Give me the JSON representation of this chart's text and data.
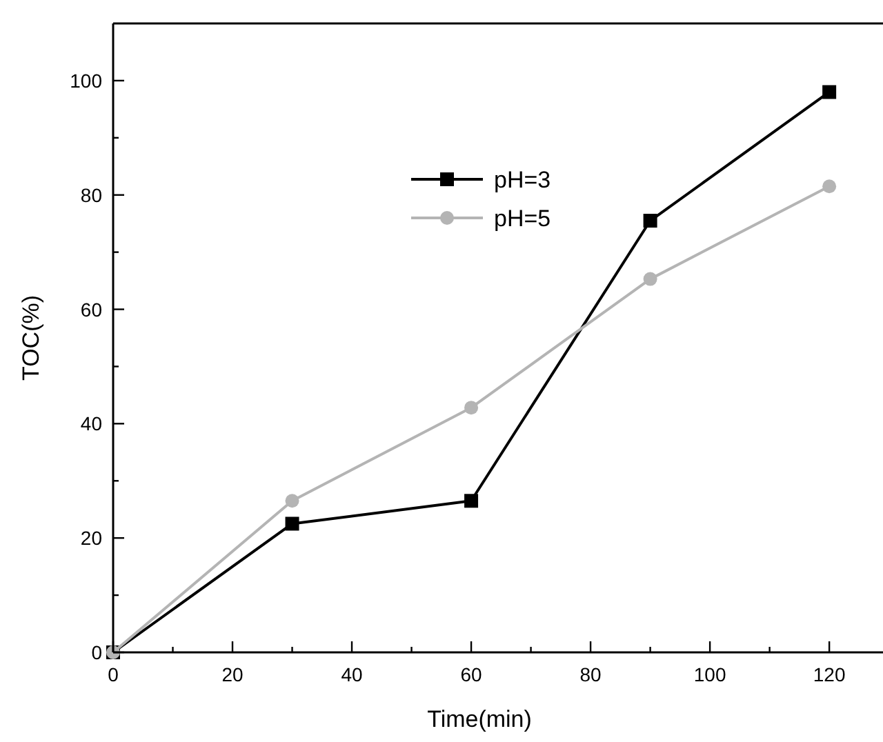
{
  "chart_data": {
    "type": "line",
    "xlabel": "Time(min)",
    "ylabel": "TOC(%)",
    "x": [
      0,
      30,
      60,
      90,
      120
    ],
    "series": [
      {
        "name": "pH=3",
        "color": "#000000",
        "marker": "square",
        "values": [
          0,
          22.5,
          26.5,
          75.5,
          98
        ]
      },
      {
        "name": "pH=5",
        "color": "#b4b4b4",
        "marker": "circle",
        "values": [
          0,
          26.5,
          42.8,
          65.3,
          81.5
        ]
      }
    ],
    "xlim": [
      0,
      129
    ],
    "ylim": [
      0,
      110
    ],
    "xticks": [
      0,
      {
        "value": 10,
        "label": null
      },
      20,
      {
        "value": 30,
        "label": null
      },
      40,
      {
        "value": 50,
        "label": null
      },
      60,
      {
        "value": 70,
        "label": null
      },
      80,
      {
        "value": 90,
        "label": null
      },
      100,
      {
        "value": 110,
        "label": null
      },
      120
    ],
    "yticks": [
      0,
      {
        "value": 10,
        "label": null
      },
      20,
      {
        "value": 30,
        "label": null
      },
      40,
      {
        "value": 50,
        "label": null
      },
      60,
      {
        "value": 70,
        "label": null
      },
      80,
      {
        "value": 90,
        "label": null
      },
      100
    ],
    "grid": false,
    "legend": "top",
    "line_style": "solid"
  }
}
